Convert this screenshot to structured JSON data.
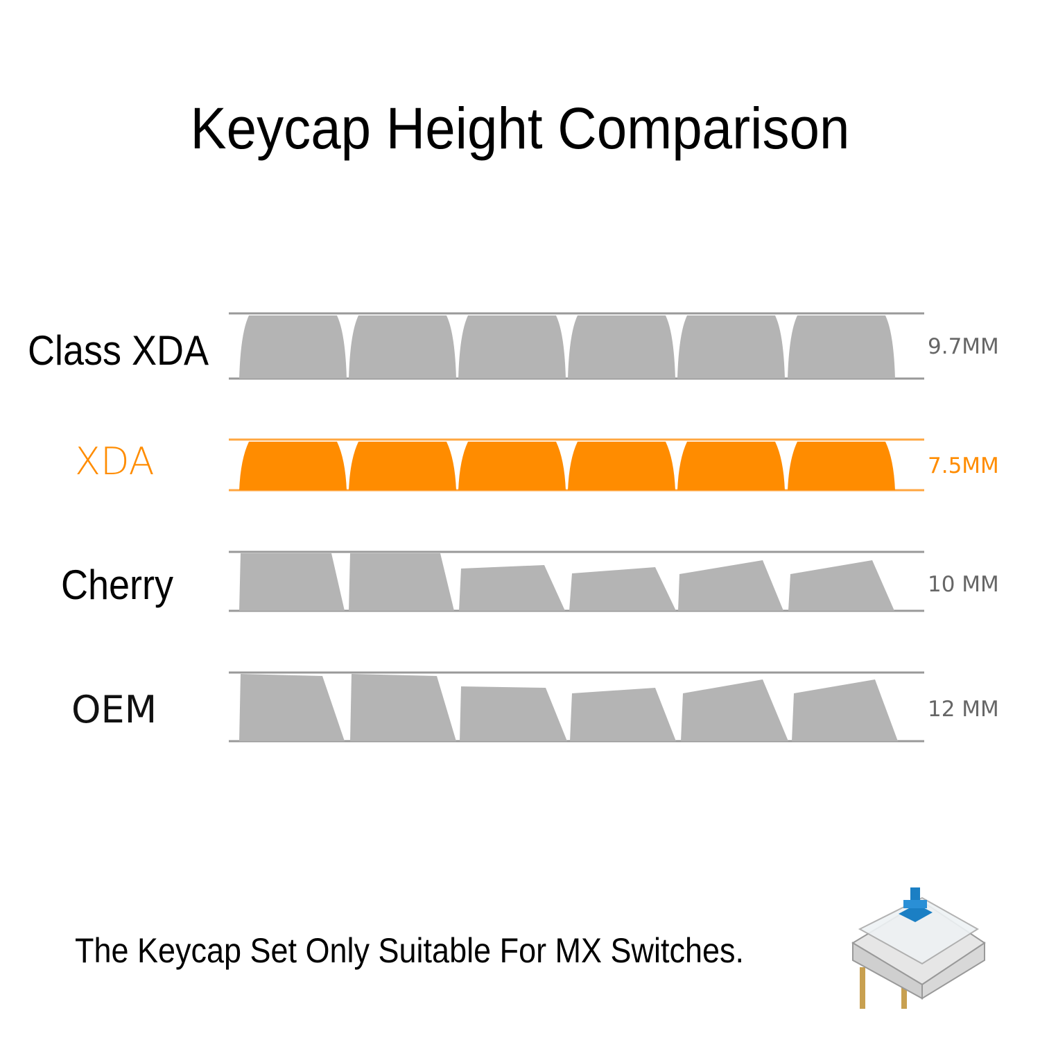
{
  "title": "Keycap Height Comparison",
  "profiles": [
    {
      "name": "Class XDA",
      "height": "9.7MM"
    },
    {
      "name": "XDA",
      "height": "7.5MM"
    },
    {
      "name": "Cherry",
      "height": "10 MM"
    },
    {
      "name": "OEM",
      "height": "12 MM"
    }
  ],
  "footer": "The Keycap Set Only Suitable For MX Switches."
}
